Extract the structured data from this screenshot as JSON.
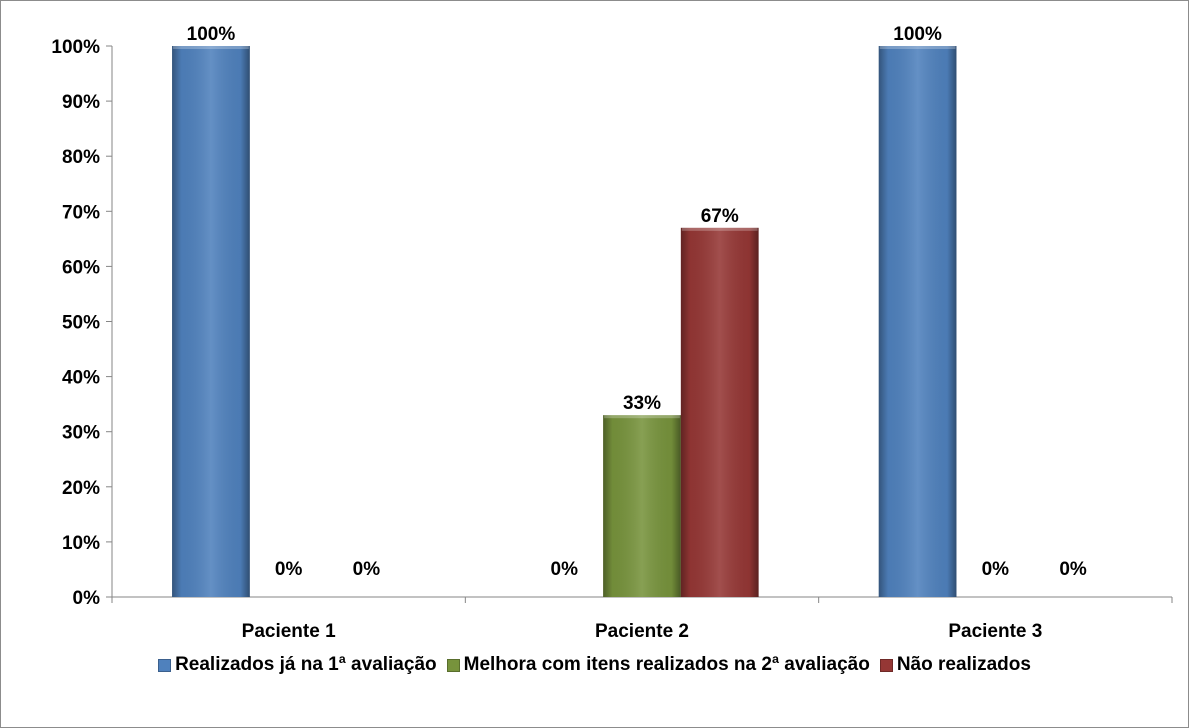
{
  "chart_data": {
    "type": "bar",
    "categories": [
      "Paciente 1",
      "Paciente 2",
      "Paciente 3"
    ],
    "series": [
      {
        "name": "Realizados já na 1ª avaliação",
        "values": [
          100,
          0,
          100
        ],
        "labels": [
          "100%",
          "0%",
          "100%"
        ],
        "color": "#4f81bd"
      },
      {
        "name": "Melhora com itens realizados na 2ª avaliação",
        "values": [
          0,
          33,
          0
        ],
        "labels": [
          "0%",
          "33%",
          "0%"
        ],
        "color": "#77933c"
      },
      {
        "name": "Não realizados",
        "values": [
          0,
          67,
          0
        ],
        "labels": [
          "0%",
          "67%",
          "0%"
        ],
        "color": "#953735"
      }
    ],
    "y_ticks": [
      "0%",
      "10%",
      "20%",
      "30%",
      "40%",
      "50%",
      "60%",
      "70%",
      "80%",
      "90%",
      "100%"
    ],
    "ylim": [
      0,
      100
    ],
    "legend_position": "bottom",
    "grid": false
  }
}
